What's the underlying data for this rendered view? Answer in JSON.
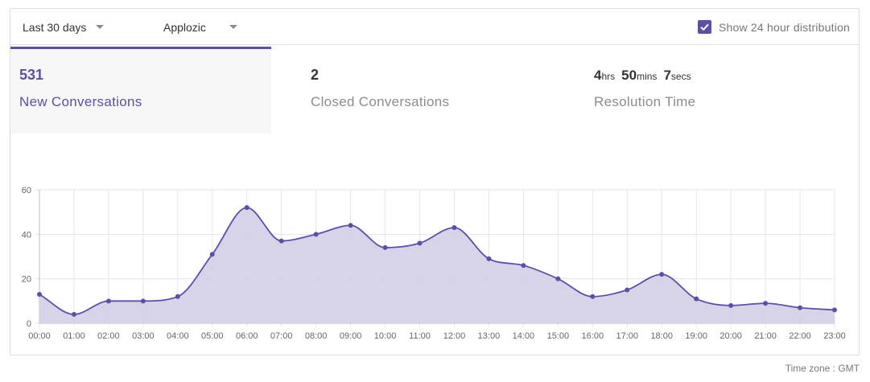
{
  "filters": {
    "range_label": "Last 30 days",
    "app_label": "Applozic",
    "distribution_label": "Show 24 hour distribution",
    "distribution_checked": true
  },
  "tabs": {
    "new": {
      "value": "531",
      "label": "New Conversations"
    },
    "closed": {
      "value": "2",
      "label": "Closed Conversations"
    },
    "resolution": {
      "hours": "4",
      "hours_unit": "hrs",
      "mins": "50",
      "mins_unit": "mins",
      "secs": "7",
      "secs_unit": "secs",
      "label": "Resolution Time"
    }
  },
  "footer": {
    "timezone": "Time zone : GMT"
  },
  "colors": {
    "accent": "#5b4fa8",
    "fill": "#d5d1e8",
    "grid": "#e6e6e6"
  },
  "chart_data": {
    "type": "area",
    "title": "",
    "xlabel": "",
    "ylabel": "",
    "ylim": [
      0,
      60
    ],
    "yticks": [
      0,
      20,
      40,
      60
    ],
    "grid": true,
    "categories": [
      "00:00",
      "01:00",
      "02:00",
      "03:00",
      "04:00",
      "05:00",
      "06:00",
      "07:00",
      "08:00",
      "09:00",
      "10:00",
      "11:00",
      "12:00",
      "13:00",
      "14:00",
      "15:00",
      "16:00",
      "17:00",
      "18:00",
      "19:00",
      "20:00",
      "21:00",
      "22:00",
      "23:00"
    ],
    "values": [
      13,
      4,
      10,
      10,
      12,
      31,
      52,
      37,
      40,
      44,
      34,
      36,
      43,
      29,
      26,
      20,
      12,
      15,
      22,
      11,
      8,
      9,
      7,
      6
    ]
  }
}
